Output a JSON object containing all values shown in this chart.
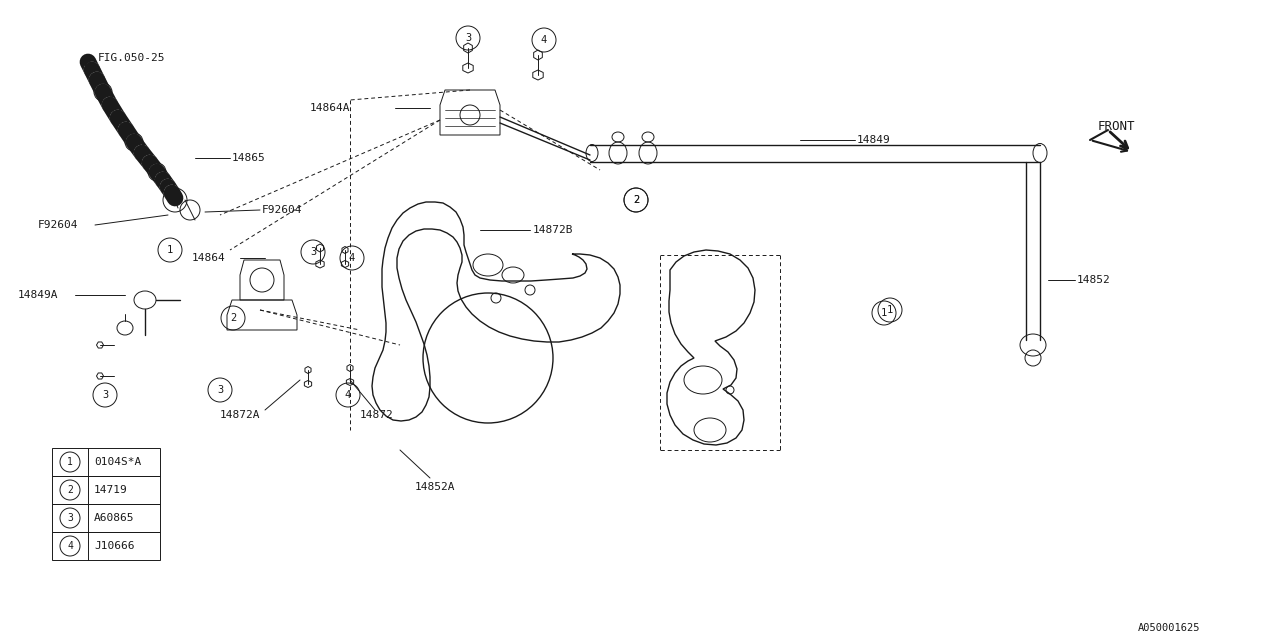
{
  "bg": "#ffffff",
  "lc": "#1a1a1a",
  "fig_id": "A050001625",
  "legend": [
    {
      "num": "1",
      "code": "0104S*A"
    },
    {
      "num": "2",
      "code": "14719"
    },
    {
      "num": "3",
      "code": "A60865"
    },
    {
      "num": "4",
      "code": "J10666"
    }
  ]
}
